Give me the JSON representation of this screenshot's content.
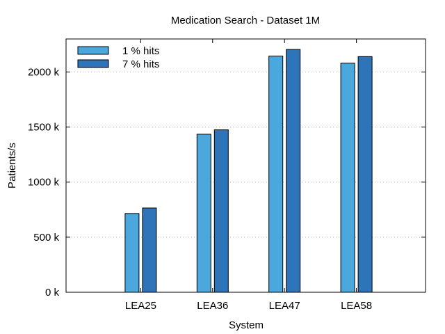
{
  "chart_data": {
    "type": "bar",
    "title": "Medication Search - Dataset 1M",
    "xlabel": "System",
    "ylabel": "Patients/s",
    "categories": [
      "LEA25",
      "LEA36",
      "LEA47",
      "LEA58"
    ],
    "series": [
      {
        "name": "1 % hits",
        "color": "#4aa8dc",
        "values": [
          715,
          1435,
          2145,
          2080
        ]
      },
      {
        "name": "7 % hits",
        "color": "#2e74b8",
        "values": [
          765,
          1475,
          2205,
          2140
        ]
      }
    ],
    "ylim": [
      0,
      2300
    ],
    "yticks": [
      {
        "value": 0,
        "label": "0 k"
      },
      {
        "value": 500,
        "label": "500 k"
      },
      {
        "value": 1000,
        "label": "1000 k"
      },
      {
        "value": 1500,
        "label": "1500 k"
      },
      {
        "value": 2000,
        "label": "2000 k"
      }
    ],
    "grid": true,
    "legend_position": "top-left"
  }
}
